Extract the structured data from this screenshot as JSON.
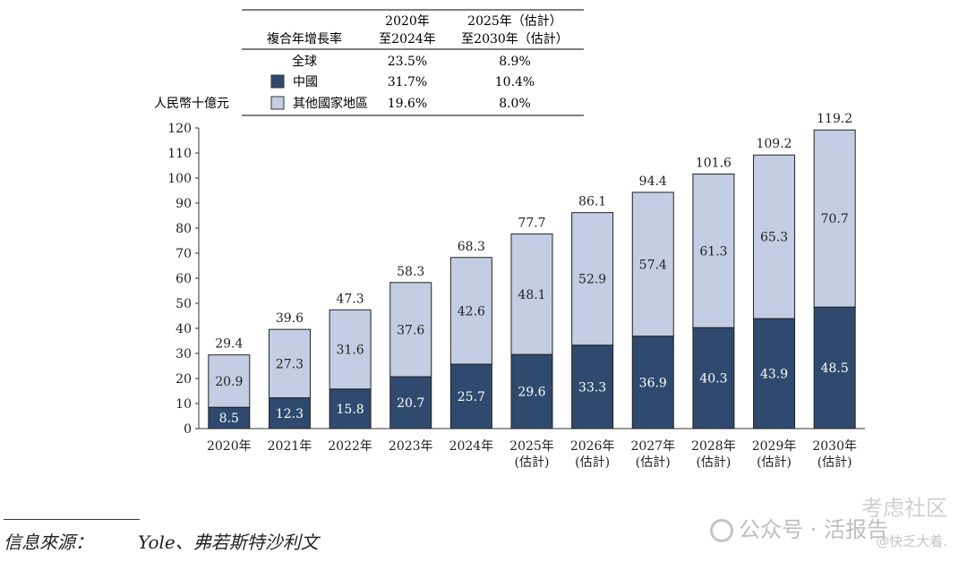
{
  "chart_data": {
    "type": "bar",
    "stacked": true,
    "ylabel": "人民幣十億元",
    "ylim": [
      0,
      120
    ],
    "yticks": [
      0,
      10,
      20,
      30,
      40,
      50,
      60,
      70,
      80,
      90,
      100,
      110,
      120
    ],
    "categories": [
      "2020年",
      "2021年",
      "2022年",
      "2023年",
      "2024年",
      "2025年\n(估計)",
      "2026年\n(估計)",
      "2027年\n(估計)",
      "2028年\n(估計)",
      "2029年\n(估計)",
      "2030年\n(估計)"
    ],
    "series": [
      {
        "name": "中國",
        "color": "#2f4a6e",
        "values": [
          8.5,
          12.3,
          15.8,
          20.7,
          25.7,
          29.6,
          33.3,
          36.9,
          40.3,
          43.9,
          48.5
        ]
      },
      {
        "name": "其他國家地區",
        "color": "#c3cde3",
        "values": [
          20.9,
          27.3,
          31.6,
          37.6,
          42.6,
          48.1,
          52.9,
          57.4,
          61.3,
          65.3,
          70.7
        ]
      }
    ],
    "totals": [
      29.4,
      39.6,
      47.3,
      58.3,
      68.3,
      77.7,
      86.1,
      94.4,
      101.6,
      109.2,
      119.2
    ]
  },
  "cagr_table": {
    "header": [
      "複合年增長率",
      "2020年\n至2024年",
      "2025年（估計）\n至2030年（估計）"
    ],
    "rows": [
      {
        "label": "全球",
        "p1": "23.5%",
        "p2": "8.9%"
      },
      {
        "label": "中國",
        "p1": "31.7%",
        "p2": "10.4%"
      },
      {
        "label": "其他國家地區",
        "p1": "19.6%",
        "p2": "8.0%"
      }
    ]
  },
  "source": {
    "label": "信息來源：",
    "text": "Yole、弗若斯特沙利文"
  },
  "watermark": {
    "site": "考虑社区",
    "account": "公众号 · 活报告",
    "handle": "@快乏大着."
  }
}
